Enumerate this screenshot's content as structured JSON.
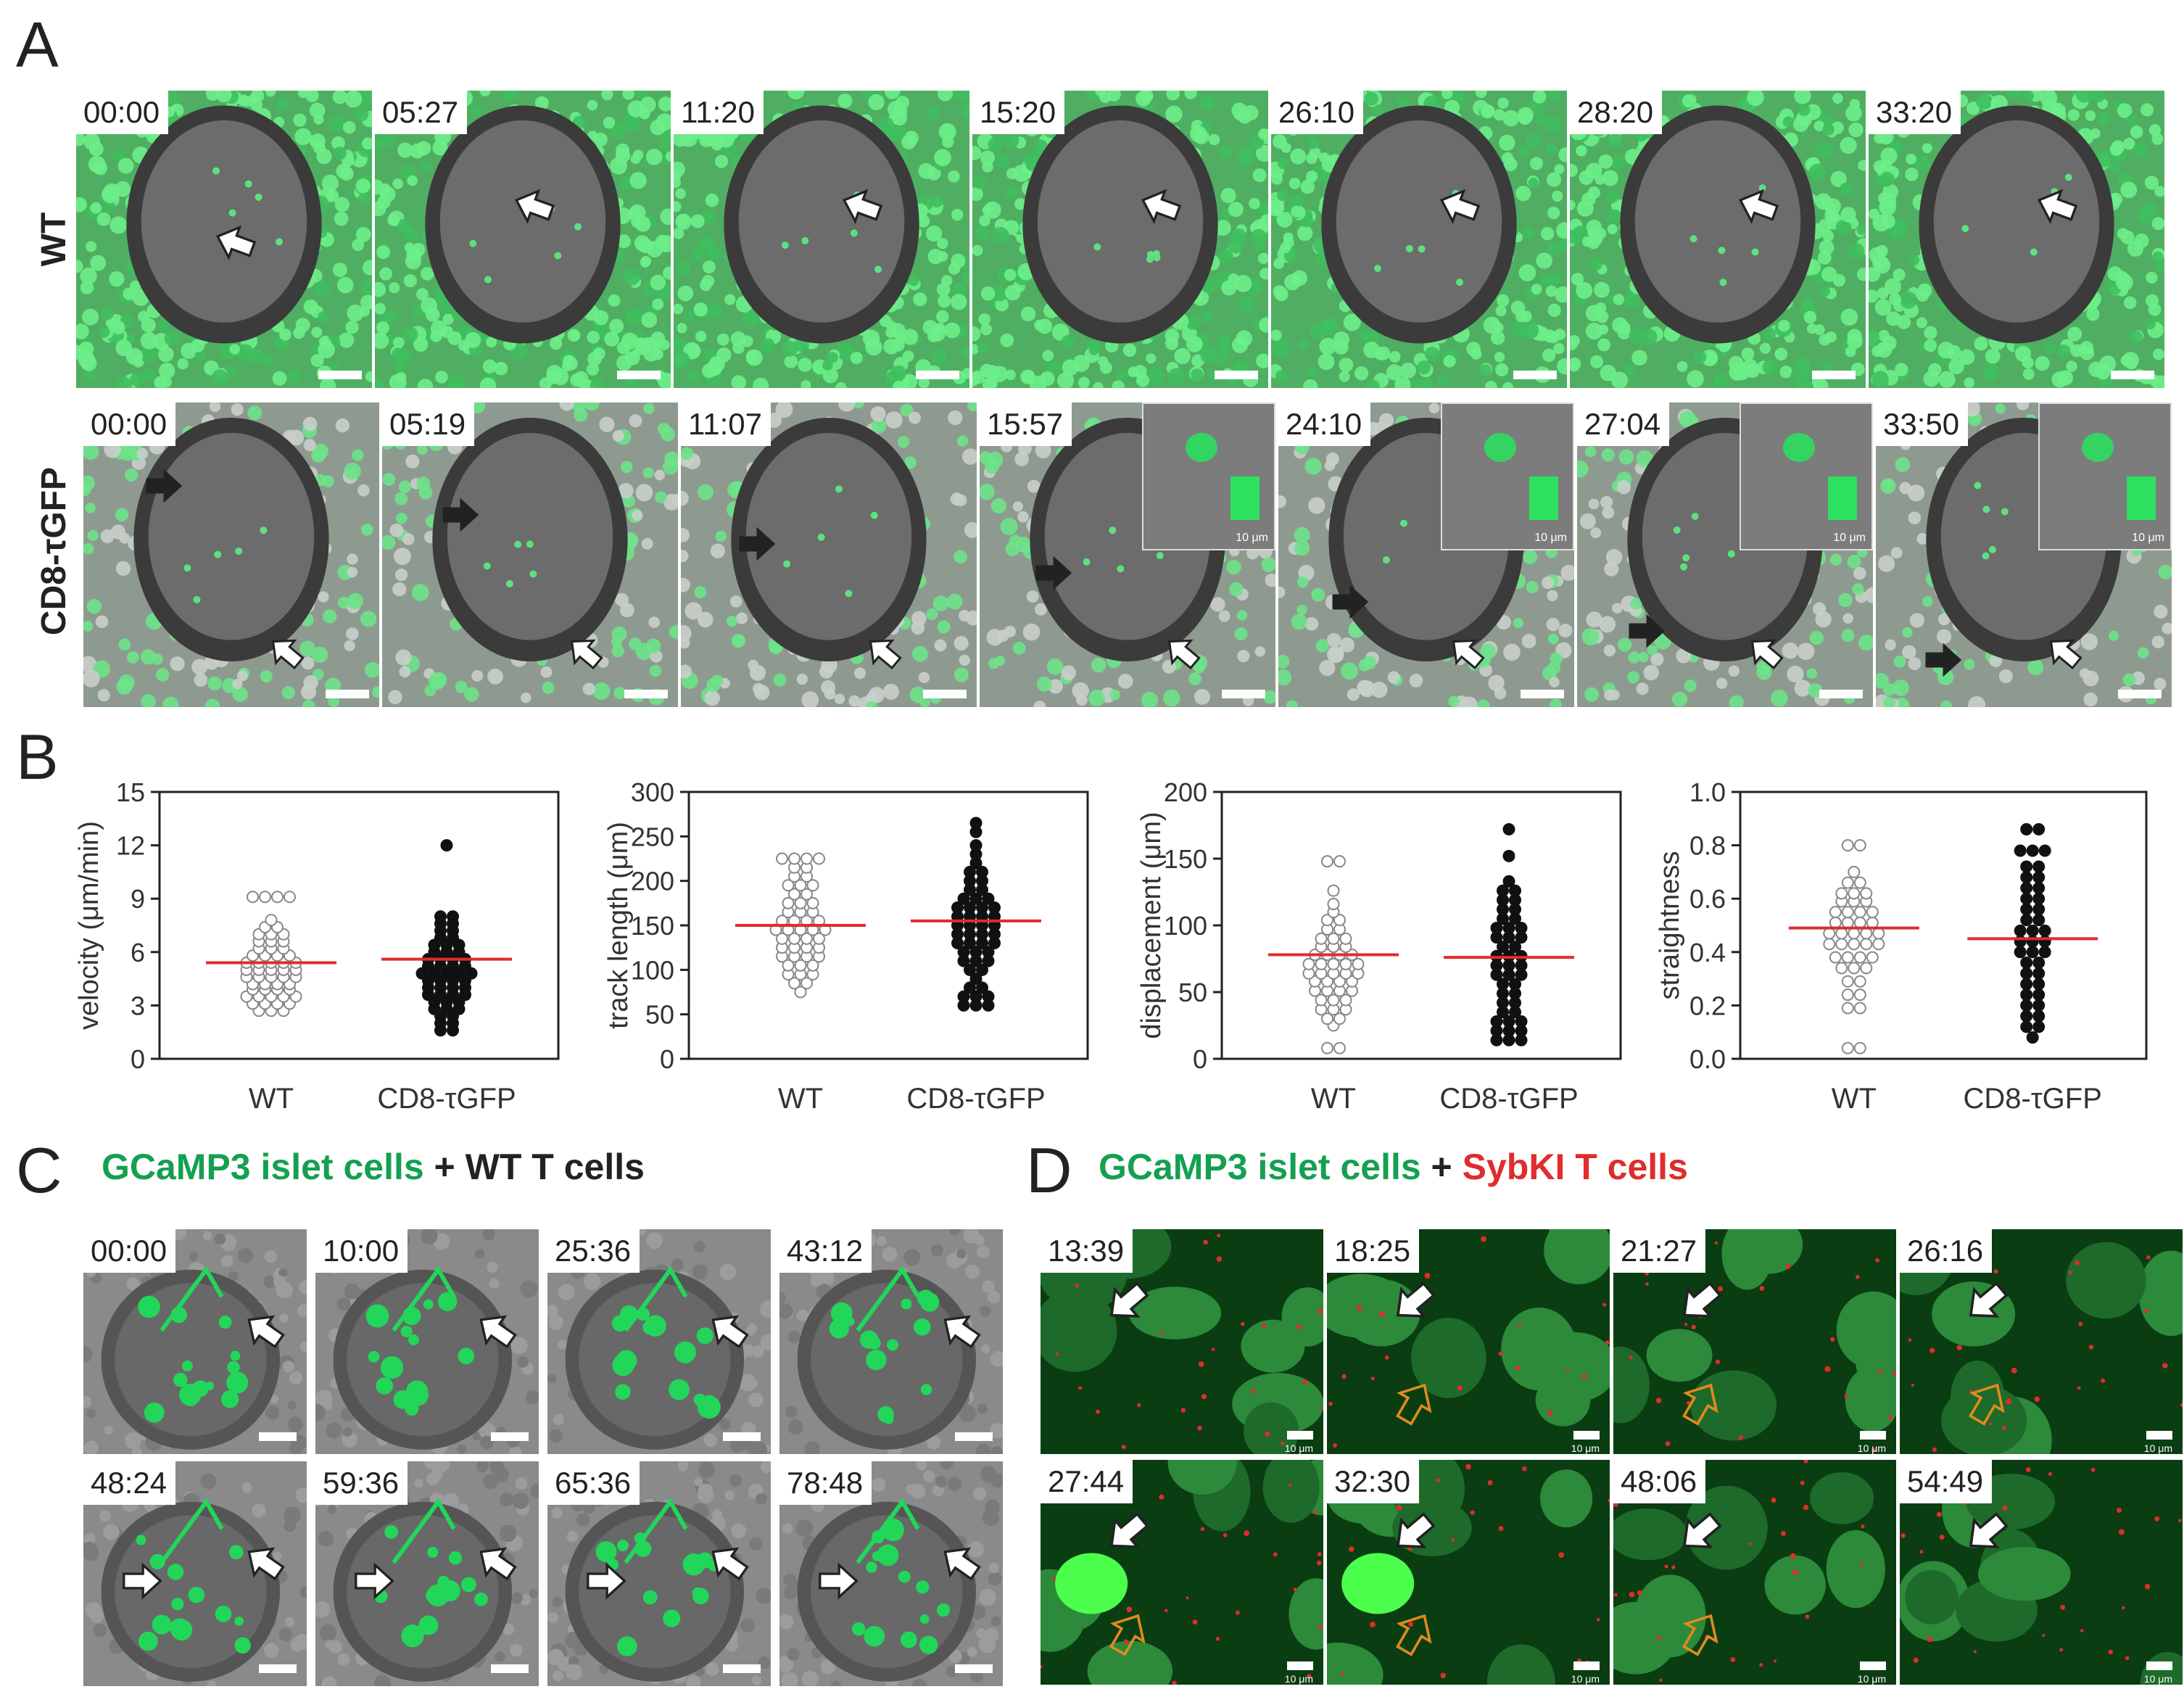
{
  "panel_labels": {
    "a": "A",
    "b": "B",
    "c": "C",
    "d": "D"
  },
  "panel_a": {
    "row_wt_label": "WT",
    "row_cd8_label": "CD8-τGFP",
    "wt_times": [
      "00:00",
      "05:27",
      "11:20",
      "15:20",
      "26:10",
      "28:20",
      "33:20"
    ],
    "cd8_times": [
      "00:00",
      "05:19",
      "11:07",
      "15:57",
      "24:10",
      "27:04",
      "33:50"
    ],
    "inset_scale_label": "10 μm"
  },
  "panel_c": {
    "caption_green": "GCaMP3 islet cells",
    "caption_plus": " + ",
    "caption_rest": "WT T cells",
    "times": [
      "00:00",
      "10:00",
      "25:36",
      "43:12",
      "48:24",
      "59:36",
      "65:36",
      "78:48"
    ]
  },
  "panel_d": {
    "caption_green": "GCaMP3 islet cells",
    "caption_plus": " + ",
    "caption_red": "SybKI T cells",
    "times": [
      "13:39",
      "18:25",
      "21:27",
      "26:16",
      "27:44",
      "32:30",
      "48:06",
      "54:49"
    ],
    "scale_label": "10 μm"
  },
  "colors": {
    "wt_mean": "#e02c2c",
    "gfp": "#14a050",
    "syb": "#e02c2c",
    "arrow_orange": "#e08a1e"
  },
  "chart_data": [
    {
      "type": "scatter",
      "title": "",
      "ylabel": "velocity (μm/min)",
      "categories": [
        "WT",
        "CD8-τGFP"
      ],
      "ylim": [
        0,
        15
      ],
      "yticks": [
        0,
        3,
        6,
        9,
        12,
        15
      ],
      "series": [
        {
          "name": "WT",
          "fill": "open",
          "mean": 5.4,
          "values": [
            2.7,
            2.7,
            2.7,
            3.1,
            3.1,
            3.1,
            3.1,
            3.5,
            3.5,
            3.5,
            3.5,
            3.5,
            3.9,
            3.9,
            3.9,
            3.9,
            4.2,
            4.2,
            4.2,
            4.2,
            4.6,
            4.6,
            4.6,
            4.6,
            4.6,
            5.0,
            5.0,
            5.0,
            5.0,
            5.0,
            5.4,
            5.4,
            5.4,
            5.4,
            5.4,
            5.8,
            5.8,
            5.8,
            5.8,
            6.2,
            6.2,
            6.2,
            6.6,
            6.6,
            6.6,
            7.0,
            7.0,
            7.0,
            7.4,
            7.4,
            7.8,
            9.1,
            9.1,
            9.1,
            9.1
          ]
        },
        {
          "name": "CD8-τGFP",
          "fill": "filled",
          "mean": 5.6,
          "values": [
            1.6,
            1.6,
            2.0,
            2.0,
            2.4,
            2.4,
            2.8,
            2.8,
            2.8,
            3.2,
            3.2,
            3.2,
            3.6,
            3.6,
            3.6,
            3.6,
            4.0,
            4.0,
            4.0,
            4.0,
            4.4,
            4.4,
            4.4,
            4.4,
            4.8,
            4.8,
            4.8,
            4.8,
            4.8,
            5.2,
            5.2,
            5.2,
            5.2,
            5.6,
            5.6,
            5.6,
            5.6,
            6.0,
            6.0,
            6.0,
            6.4,
            6.4,
            6.4,
            6.8,
            6.8,
            7.2,
            7.2,
            7.6,
            7.6,
            8.0,
            8.0,
            12.0
          ]
        }
      ],
      "xlabels_bottom": [
        "WT",
        "CD8-τGFP"
      ]
    },
    {
      "type": "scatter",
      "ylabel": "track length (μm)",
      "categories": [
        "WT",
        "CD8-τGFP"
      ],
      "ylim": [
        0,
        300
      ],
      "yticks": [
        0,
        50,
        100,
        150,
        200,
        250,
        300
      ],
      "series": [
        {
          "name": "WT",
          "fill": "open",
          "mean": 150,
          "values": [
            75,
            85,
            85,
            95,
            95,
            95,
            105,
            105,
            105,
            115,
            115,
            115,
            115,
            125,
            125,
            125,
            125,
            135,
            135,
            135,
            135,
            145,
            145,
            145,
            145,
            145,
            155,
            155,
            155,
            155,
            165,
            165,
            165,
            175,
            175,
            175,
            185,
            185,
            195,
            195,
            195,
            205,
            205,
            215,
            215,
            225,
            225,
            225,
            225
          ]
        },
        {
          "name": "CD8-τGFP",
          "fill": "filled",
          "mean": 155,
          "values": [
            60,
            60,
            60,
            70,
            70,
            70,
            80,
            80,
            90,
            100,
            100,
            110,
            110,
            110,
            120,
            120,
            120,
            130,
            130,
            130,
            130,
            140,
            140,
            140,
            140,
            150,
            150,
            150,
            150,
            160,
            160,
            160,
            160,
            170,
            170,
            170,
            170,
            180,
            180,
            180,
            190,
            190,
            200,
            200,
            210,
            210,
            220,
            230,
            240,
            255,
            265
          ]
        }
      ],
      "xlabels_bottom": [
        "WT",
        "CD8-τGFP"
      ]
    },
    {
      "type": "scatter",
      "ylabel": "displacement (μm)",
      "categories": [
        "WT",
        "CD8-τGFP"
      ],
      "ylim": [
        0,
        200
      ],
      "yticks": [
        0,
        50,
        100,
        150,
        200
      ],
      "series": [
        {
          "name": "WT",
          "fill": "open",
          "mean": 78,
          "values": [
            8,
            8,
            25,
            30,
            30,
            37,
            37,
            37,
            44,
            44,
            44,
            51,
            51,
            51,
            51,
            58,
            58,
            58,
            58,
            64,
            64,
            64,
            64,
            64,
            71,
            71,
            71,
            71,
            71,
            78,
            78,
            78,
            78,
            84,
            84,
            84,
            90,
            90,
            90,
            97,
            97,
            104,
            104,
            110,
            116,
            126,
            148,
            148
          ]
        },
        {
          "name": "CD8-τGFP",
          "fill": "filled",
          "mean": 76,
          "values": [
            14,
            14,
            14,
            21,
            21,
            21,
            28,
            28,
            28,
            35,
            35,
            42,
            42,
            49,
            49,
            56,
            56,
            63,
            63,
            63,
            70,
            70,
            70,
            77,
            77,
            77,
            84,
            84,
            91,
            91,
            91,
            98,
            98,
            98,
            105,
            105,
            112,
            112,
            119,
            119,
            126,
            126,
            133,
            152,
            172
          ]
        }
      ],
      "xlabels_bottom": [
        "WT",
        "CD8-τGFP"
      ]
    },
    {
      "type": "scatter",
      "ylabel": "straightness",
      "categories": [
        "WT",
        "CD8-τGFP"
      ],
      "ylim": [
        0,
        1.0
      ],
      "yticks": [
        0.0,
        0.2,
        0.4,
        0.6,
        0.8,
        1.0
      ],
      "series": [
        {
          "name": "WT",
          "fill": "open",
          "mean": 0.49,
          "values": [
            0.04,
            0.04,
            0.19,
            0.19,
            0.24,
            0.24,
            0.29,
            0.29,
            0.34,
            0.34,
            0.34,
            0.38,
            0.38,
            0.38,
            0.38,
            0.43,
            0.43,
            0.43,
            0.43,
            0.43,
            0.47,
            0.47,
            0.47,
            0.47,
            0.47,
            0.51,
            0.51,
            0.51,
            0.51,
            0.55,
            0.55,
            0.55,
            0.55,
            0.59,
            0.59,
            0.59,
            0.62,
            0.62,
            0.62,
            0.66,
            0.66,
            0.7,
            0.8,
            0.8
          ]
        },
        {
          "name": "CD8-τGFP",
          "fill": "filled",
          "mean": 0.45,
          "values": [
            0.08,
            0.12,
            0.12,
            0.16,
            0.16,
            0.2,
            0.2,
            0.24,
            0.24,
            0.28,
            0.28,
            0.32,
            0.32,
            0.36,
            0.36,
            0.4,
            0.4,
            0.4,
            0.44,
            0.44,
            0.44,
            0.48,
            0.48,
            0.48,
            0.52,
            0.52,
            0.56,
            0.56,
            0.6,
            0.6,
            0.64,
            0.64,
            0.68,
            0.68,
            0.72,
            0.72,
            0.78,
            0.78,
            0.78,
            0.86,
            0.86
          ]
        }
      ],
      "xlabels_bottom": [
        "WT",
        "CD8-τGFP"
      ]
    }
  ]
}
